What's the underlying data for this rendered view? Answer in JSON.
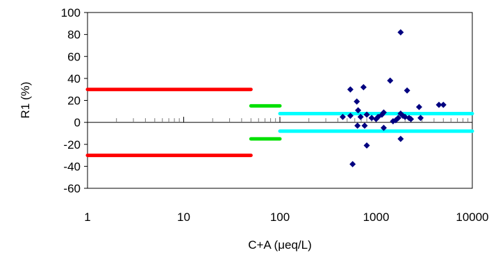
{
  "chart_data": {
    "type": "scatter",
    "title": "",
    "xlabel": "C+A (μeq/L)",
    "ylabel": "R1 (%)",
    "xscale": "log",
    "xlim": [
      1,
      10000
    ],
    "ylim": [
      -60,
      100
    ],
    "grid": false,
    "legend": "none",
    "x_ticks": [
      1,
      10,
      100,
      1000,
      10000
    ],
    "x_tick_labels": [
      "1",
      "10",
      "100",
      "1000",
      "10000"
    ],
    "y_ticks": [
      -60,
      -40,
      -20,
      0,
      20,
      40,
      60,
      80,
      100
    ],
    "y_tick_labels": [
      "-60",
      "-40",
      "-20",
      "0",
      "20",
      "40",
      "60",
      "80",
      "100"
    ],
    "limit_segments": [
      {
        "color": "#ff0000",
        "x": [
          1,
          50
        ],
        "y": 30
      },
      {
        "color": "#ff0000",
        "x": [
          1,
          50
        ],
        "y": -30
      },
      {
        "color": "#00e000",
        "x": [
          50,
          100
        ],
        "y": 15
      },
      {
        "color": "#00e000",
        "x": [
          50,
          100
        ],
        "y": -15
      },
      {
        "color": "#00ffff",
        "x": [
          100,
          10000
        ],
        "y": 8
      },
      {
        "color": "#00ffff",
        "x": [
          100,
          10000
        ],
        "y": -8
      }
    ],
    "series": [
      {
        "color": "#000080",
        "marker": "diamond",
        "points": [
          [
            450,
            5
          ],
          [
            540,
            6
          ],
          [
            540,
            30
          ],
          [
            570,
            -38
          ],
          [
            630,
            19
          ],
          [
            640,
            -3
          ],
          [
            650,
            11
          ],
          [
            690,
            5
          ],
          [
            740,
            32
          ],
          [
            760,
            -3
          ],
          [
            800,
            -21
          ],
          [
            800,
            7
          ],
          [
            900,
            4
          ],
          [
            1000,
            3
          ],
          [
            1050,
            5
          ],
          [
            1150,
            7
          ],
          [
            1200,
            9
          ],
          [
            1200,
            -5
          ],
          [
            1400,
            38
          ],
          [
            1500,
            1
          ],
          [
            1600,
            2
          ],
          [
            1700,
            4
          ],
          [
            1800,
            8
          ],
          [
            1800,
            -15
          ],
          [
            1800,
            82
          ],
          [
            1900,
            6
          ],
          [
            2000,
            5
          ],
          [
            2100,
            29
          ],
          [
            2200,
            4
          ],
          [
            2300,
            3
          ],
          [
            2800,
            14
          ],
          [
            2900,
            4
          ],
          [
            4500,
            16
          ],
          [
            5000,
            16
          ]
        ]
      }
    ]
  }
}
